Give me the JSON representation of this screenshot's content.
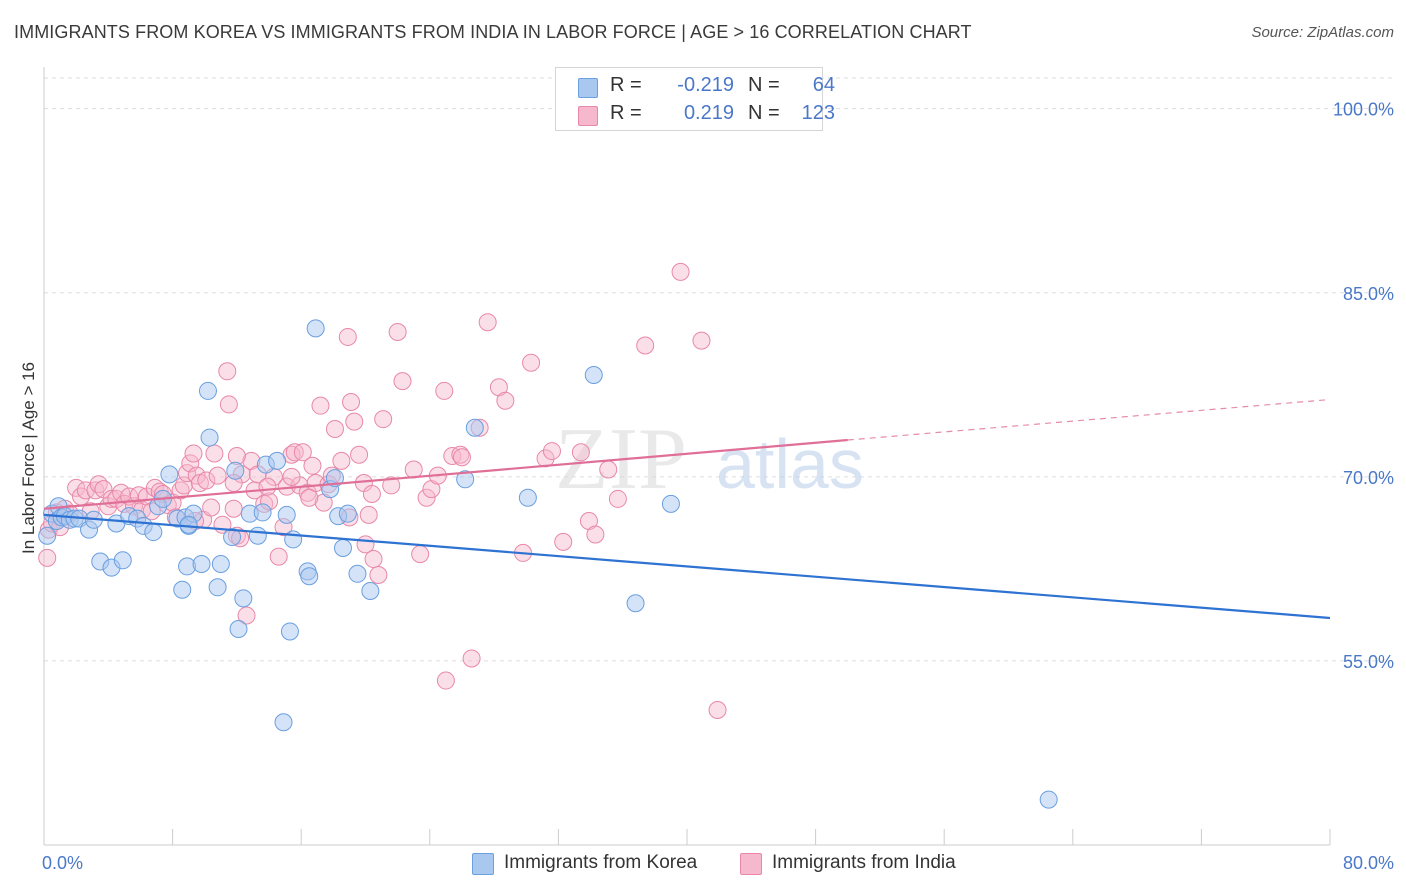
{
  "title": "IMMIGRANTS FROM KOREA VS IMMIGRANTS FROM INDIA IN LABOR FORCE | AGE > 16 CORRELATION CHART",
  "source": "Source: ZipAtlas.com",
  "watermark": {
    "zip": "ZIP",
    "atlas": "atlas"
  },
  "colors": {
    "korea_fill": "#a9c8f0",
    "korea_stroke": "#6a9fe0",
    "korea_line": "#2e72d2",
    "india_fill": "#f6b8cc",
    "india_stroke": "#e888a8",
    "india_line": "#e06f98",
    "grid": "#dddddd",
    "tick_text": "#4a78c8"
  },
  "legend": {
    "rows": [
      {
        "r_label": "R =",
        "r_value": "-0.219",
        "n_label": "N =",
        "n_value": "64"
      },
      {
        "r_label": "R =",
        "r_value": "0.219",
        "n_label": "N =",
        "n_value": "123"
      }
    ]
  },
  "bottom_legend": {
    "korea": "Immigrants from Korea",
    "india": "Immigrants from India"
  },
  "chart_data": {
    "type": "scatter",
    "title": "IMMIGRANTS FROM KOREA VS IMMIGRANTS FROM INDIA IN LABOR FORCE | AGE > 16 CORRELATION CHART",
    "xlabel": "",
    "ylabel": "In Labor Force | Age > 16",
    "xlim": [
      0,
      80
    ],
    "ylim": [
      40,
      102.5
    ],
    "x_tick_labels": [
      "0.0%",
      "80.0%"
    ],
    "y_ticks": [
      55,
      70,
      85,
      100
    ],
    "y_tick_labels": [
      "55.0%",
      "70.0%",
      "85.0%",
      "100.0%"
    ],
    "grid": true,
    "series": [
      {
        "name": "Immigrants from Korea",
        "r": -0.219,
        "n": 64,
        "trend": {
          "x": [
            0,
            80
          ],
          "y": [
            66.9,
            58.5
          ]
        },
        "points": [
          [
            0.2,
            65.2
          ],
          [
            0.5,
            67.0
          ],
          [
            0.8,
            66.4
          ],
          [
            0.9,
            67.6
          ],
          [
            1.1,
            66.7
          ],
          [
            1.3,
            66.8
          ],
          [
            1.6,
            66.5
          ],
          [
            1.9,
            66.6
          ],
          [
            2.2,
            66.6
          ],
          [
            2.8,
            65.7
          ],
          [
            3.1,
            66.5
          ],
          [
            3.5,
            63.1
          ],
          [
            4.2,
            62.6
          ],
          [
            4.5,
            66.2
          ],
          [
            4.9,
            63.2
          ],
          [
            5.3,
            66.8
          ],
          [
            5.8,
            66.6
          ],
          [
            6.2,
            66.0
          ],
          [
            6.8,
            65.5
          ],
          [
            7.1,
            67.6
          ],
          [
            7.4,
            68.2
          ],
          [
            7.8,
            70.2
          ],
          [
            8.3,
            66.6
          ],
          [
            8.6,
            60.8
          ],
          [
            8.8,
            66.7
          ],
          [
            9.0,
            66.0
          ],
          [
            9.3,
            67.0
          ],
          [
            9.0,
            66.1
          ],
          [
            8.9,
            62.7
          ],
          [
            9.8,
            62.9
          ],
          [
            10.2,
            77.0
          ],
          [
            10.3,
            73.2
          ],
          [
            10.8,
            61.0
          ],
          [
            11.0,
            62.9
          ],
          [
            11.7,
            65.1
          ],
          [
            11.9,
            70.5
          ],
          [
            12.1,
            57.6
          ],
          [
            12.4,
            60.1
          ],
          [
            12.8,
            67.0
          ],
          [
            13.3,
            65.2
          ],
          [
            13.6,
            67.1
          ],
          [
            13.8,
            71.0
          ],
          [
            14.5,
            71.3
          ],
          [
            14.9,
            50.0
          ],
          [
            15.1,
            66.9
          ],
          [
            15.3,
            57.4
          ],
          [
            15.5,
            64.9
          ],
          [
            16.4,
            62.3
          ],
          [
            16.5,
            61.9
          ],
          [
            16.9,
            82.1
          ],
          [
            17.8,
            69.0
          ],
          [
            18.1,
            69.9
          ],
          [
            18.3,
            66.8
          ],
          [
            18.6,
            64.2
          ],
          [
            18.9,
            67.0
          ],
          [
            19.5,
            62.1
          ],
          [
            20.3,
            60.7
          ],
          [
            26.2,
            69.8
          ],
          [
            26.8,
            74.0
          ],
          [
            30.1,
            68.3
          ],
          [
            34.2,
            78.3
          ],
          [
            36.8,
            59.7
          ],
          [
            39.0,
            67.8
          ],
          [
            62.5,
            43.7
          ]
        ]
      },
      {
        "name": "Immigrants from India",
        "r": 0.219,
        "n": 123,
        "trend": {
          "x": [
            0,
            50
          ],
          "y": [
            67.4,
            73.0
          ]
        },
        "trend_dashed": {
          "x": [
            50,
            80
          ],
          "y": [
            73.0,
            76.3
          ]
        },
        "points": [
          [
            0.2,
            63.4
          ],
          [
            0.3,
            65.7
          ],
          [
            0.5,
            66.2
          ],
          [
            0.8,
            67.1
          ],
          [
            1.0,
            65.9
          ],
          [
            1.3,
            67.4
          ],
          [
            1.6,
            67.0
          ],
          [
            2.0,
            69.1
          ],
          [
            2.3,
            68.4
          ],
          [
            2.6,
            68.9
          ],
          [
            2.9,
            67.2
          ],
          [
            3.2,
            68.9
          ],
          [
            3.4,
            69.4
          ],
          [
            3.7,
            69.0
          ],
          [
            4.0,
            67.6
          ],
          [
            4.2,
            68.2
          ],
          [
            4.5,
            68.2
          ],
          [
            4.8,
            68.7
          ],
          [
            5.0,
            67.8
          ],
          [
            5.3,
            68.4
          ],
          [
            5.6,
            67.6
          ],
          [
            5.9,
            68.5
          ],
          [
            6.1,
            67.3
          ],
          [
            6.4,
            68.4
          ],
          [
            6.7,
            67.2
          ],
          [
            6.9,
            69.1
          ],
          [
            7.2,
            68.8
          ],
          [
            7.4,
            68.6
          ],
          [
            7.7,
            67.7
          ],
          [
            8.0,
            67.9
          ],
          [
            8.2,
            66.7
          ],
          [
            8.5,
            68.9
          ],
          [
            8.7,
            69.3
          ],
          [
            8.9,
            70.3
          ],
          [
            9.1,
            71.1
          ],
          [
            9.3,
            71.9
          ],
          [
            9.5,
            70.1
          ],
          [
            9.7,
            69.5
          ],
          [
            9.9,
            66.5
          ],
          [
            10.1,
            69.7
          ],
          [
            10.4,
            67.5
          ],
          [
            10.6,
            71.9
          ],
          [
            10.8,
            70.1
          ],
          [
            11.1,
            66.1
          ],
          [
            11.4,
            78.6
          ],
          [
            11.5,
            75.9
          ],
          [
            11.8,
            67.4
          ],
          [
            12.0,
            65.2
          ],
          [
            12.3,
            70.2
          ],
          [
            12.6,
            58.7
          ],
          [
            12.9,
            71.3
          ],
          [
            13.1,
            68.9
          ],
          [
            13.3,
            70.2
          ],
          [
            13.7,
            67.8
          ],
          [
            14.0,
            68.0
          ],
          [
            14.3,
            70.0
          ],
          [
            14.6,
            63.5
          ],
          [
            14.9,
            65.9
          ],
          [
            15.1,
            69.2
          ],
          [
            15.4,
            71.8
          ],
          [
            15.6,
            72.0
          ],
          [
            15.9,
            69.3
          ],
          [
            16.1,
            72.0
          ],
          [
            16.4,
            68.7
          ],
          [
            16.7,
            70.9
          ],
          [
            16.9,
            69.5
          ],
          [
            17.2,
            75.8
          ],
          [
            17.4,
            67.9
          ],
          [
            17.7,
            69.4
          ],
          [
            17.9,
            70.1
          ],
          [
            18.1,
            73.9
          ],
          [
            18.5,
            71.3
          ],
          [
            18.9,
            81.4
          ],
          [
            19.1,
            76.1
          ],
          [
            19.3,
            74.5
          ],
          [
            19.6,
            71.8
          ],
          [
            19.9,
            69.5
          ],
          [
            20.2,
            66.9
          ],
          [
            20.5,
            63.3
          ],
          [
            20.8,
            62.0
          ],
          [
            21.1,
            74.7
          ],
          [
            21.6,
            69.3
          ],
          [
            22.0,
            81.8
          ],
          [
            22.3,
            77.8
          ],
          [
            23.0,
            70.6
          ],
          [
            23.4,
            63.7
          ],
          [
            23.8,
            68.3
          ],
          [
            24.1,
            69.0
          ],
          [
            24.5,
            70.1
          ],
          [
            24.9,
            77.0
          ],
          [
            25.4,
            71.7
          ],
          [
            25.9,
            71.8
          ],
          [
            26.6,
            55.2
          ],
          [
            27.1,
            74.0
          ],
          [
            27.6,
            82.6
          ],
          [
            28.3,
            77.3
          ],
          [
            28.7,
            76.2
          ],
          [
            29.8,
            63.8
          ],
          [
            30.3,
            79.3
          ],
          [
            31.2,
            71.5
          ],
          [
            31.6,
            72.1
          ],
          [
            32.3,
            64.7
          ],
          [
            33.4,
            72.0
          ],
          [
            33.9,
            66.4
          ],
          [
            34.3,
            65.3
          ],
          [
            35.1,
            70.6
          ],
          [
            35.7,
            68.2
          ],
          [
            37.4,
            80.7
          ],
          [
            39.6,
            86.7
          ],
          [
            40.9,
            81.1
          ],
          [
            41.9,
            51.0
          ],
          [
            25.0,
            53.4
          ],
          [
            26.0,
            71.6
          ],
          [
            20.0,
            64.5
          ],
          [
            20.4,
            68.6
          ],
          [
            13.9,
            69.2
          ],
          [
            12.2,
            65.0
          ],
          [
            11.8,
            69.5
          ],
          [
            12.0,
            71.7
          ],
          [
            16.5,
            68.3
          ],
          [
            15.4,
            70.0
          ],
          [
            9.4,
            66.4
          ],
          [
            19.0,
            66.7
          ]
        ]
      }
    ]
  }
}
